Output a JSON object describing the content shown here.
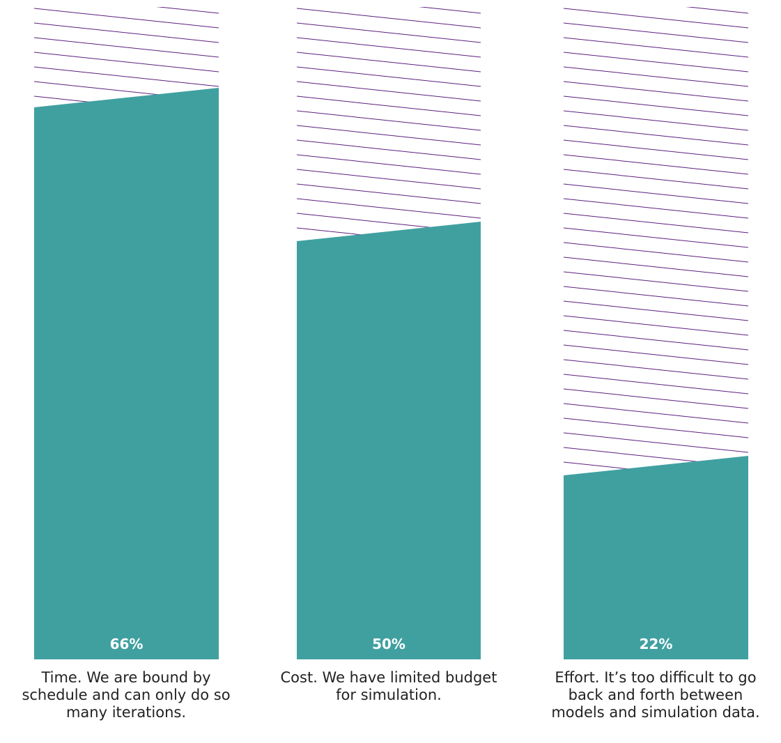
{
  "chart_data": {
    "type": "bar",
    "categories": [
      "Time. We are bound by schedule and can only do so many iterations.",
      "Cost. We have limited budget for simulation.",
      "Effort. It’s too difficult to go back and forth between models and simulation data."
    ],
    "values": [
      66,
      50,
      22
    ],
    "value_labels": [
      "66%",
      "50%",
      "22%"
    ],
    "ylim": [
      0,
      78
    ],
    "colors": {
      "bar": "#40a0a0",
      "hatch": "#5c1e7e",
      "label": "#ffffff",
      "caption": "#222222"
    },
    "legend": "none",
    "grid": false
  }
}
